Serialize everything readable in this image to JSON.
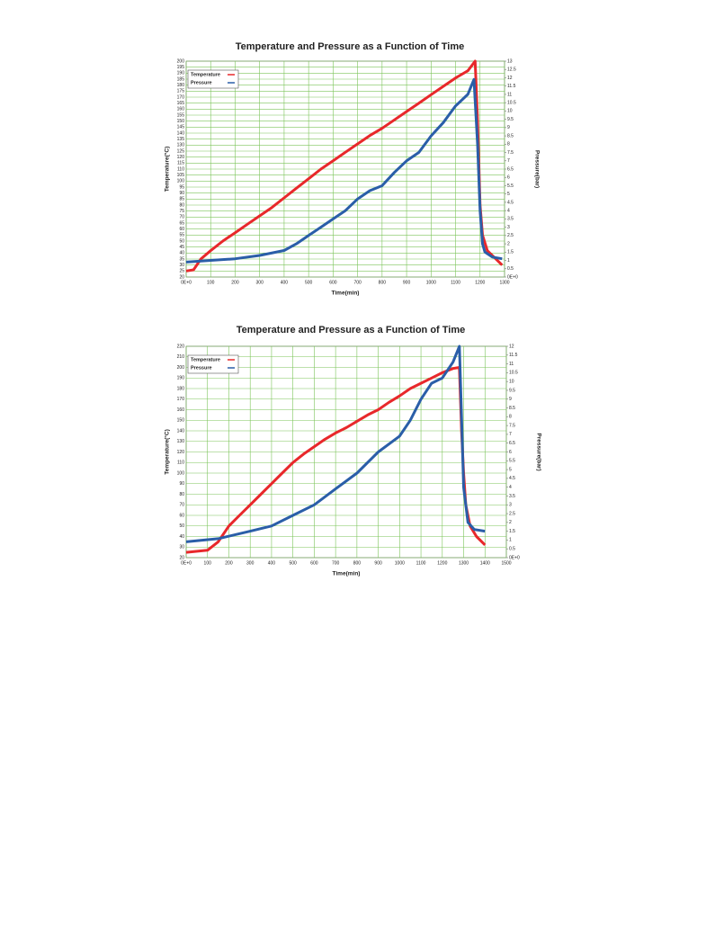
{
  "chart_data": [
    {
      "type": "line",
      "title": "Temperature and Pressure as a Function of Time",
      "xlabel": "Time(min)",
      "ylabel": "Temperature(°C)",
      "y2label": "Pressure(bar)",
      "xlim": [
        0,
        1300
      ],
      "xticks": [
        {
          "value": 0,
          "label": "0E+0"
        },
        100,
        200,
        300,
        400,
        500,
        600,
        700,
        800,
        900,
        1000,
        1100,
        1200,
        1300
      ],
      "ylim": [
        20,
        200
      ],
      "yticks": [
        20,
        25,
        30,
        35,
        40,
        45,
        50,
        55,
        60,
        65,
        70,
        75,
        80,
        85,
        90,
        95,
        100,
        105,
        110,
        115,
        120,
        125,
        130,
        135,
        140,
        145,
        150,
        155,
        160,
        165,
        170,
        175,
        180,
        185,
        190,
        195,
        200
      ],
      "y2lim": [
        0,
        13
      ],
      "y2ticks": [
        {
          "value": 0,
          "label": "0E+0"
        },
        0.5,
        1,
        1.5,
        2,
        2.5,
        3,
        3.5,
        4,
        4.5,
        5,
        5.5,
        6,
        6.5,
        7,
        7.5,
        8,
        8.5,
        9,
        9.5,
        10,
        10.5,
        11,
        11.5,
        12,
        12.5,
        13
      ],
      "grid": true,
      "legend": "upper left",
      "grid_color": "#7cc45a",
      "series": [
        {
          "name": "Temperature",
          "color": "#e8282b",
          "x": [
            0,
            30,
            60,
            100,
            150,
            200,
            250,
            300,
            350,
            400,
            450,
            500,
            550,
            600,
            650,
            700,
            750,
            800,
            850,
            900,
            950,
            1000,
            1050,
            1100,
            1150,
            1180,
            1190,
            1200,
            1210,
            1230,
            1260,
            1290
          ],
          "values": [
            25,
            26,
            35,
            42,
            50,
            57,
            64,
            71,
            78,
            86,
            94,
            102,
            110,
            117,
            124,
            131,
            138,
            144,
            151,
            158,
            165,
            172,
            179,
            186,
            192,
            200,
            150,
            80,
            55,
            42,
            36,
            30
          ]
        },
        {
          "name": "Pressure",
          "color": "#2a5ea8",
          "axis": "y2",
          "x": [
            0,
            100,
            200,
            300,
            400,
            450,
            500,
            550,
            600,
            650,
            700,
            750,
            800,
            850,
            900,
            950,
            1000,
            1050,
            1100,
            1150,
            1175,
            1190,
            1200,
            1210,
            1220,
            1250,
            1290
          ],
          "values": [
            0.9,
            1.0,
            1.1,
            1.3,
            1.6,
            2.0,
            2.5,
            3.0,
            3.5,
            4.0,
            4.7,
            5.2,
            5.5,
            6.3,
            7.0,
            7.5,
            8.5,
            9.3,
            10.3,
            11.0,
            11.9,
            8,
            4,
            2,
            1.5,
            1.2,
            1.1
          ]
        }
      ]
    },
    {
      "type": "line",
      "title": "Temperature and Pressure as a Function of Time",
      "xlabel": "Time(min)",
      "ylabel": "Temperature(°C)",
      "y2label": "Pressure(bar)",
      "xlim": [
        0,
        1500
      ],
      "xticks": [
        {
          "value": 0,
          "label": "0E+0"
        },
        100,
        200,
        300,
        400,
        500,
        600,
        700,
        800,
        900,
        1000,
        1100,
        1200,
        1300,
        1400,
        1500
      ],
      "ylim": [
        20,
        220
      ],
      "yticks": [
        20,
        30,
        40,
        50,
        60,
        70,
        80,
        90,
        100,
        110,
        120,
        130,
        140,
        150,
        160,
        170,
        180,
        190,
        200,
        210,
        220
      ],
      "y2lim": [
        0,
        12
      ],
      "y2ticks": [
        {
          "value": 0,
          "label": "0E+0"
        },
        0.5,
        1,
        1.5,
        2,
        2.5,
        3,
        3.5,
        4,
        4.5,
        5,
        5.5,
        6,
        6.5,
        7,
        7.5,
        8,
        8.5,
        9,
        9.5,
        10,
        10.5,
        11,
        11.5,
        12
      ],
      "grid": true,
      "legend": "upper left",
      "grid_color": "#7cc45a",
      "series": [
        {
          "name": "Temperature",
          "color": "#e8282b",
          "x": [
            0,
            100,
            150,
            200,
            250,
            300,
            350,
            400,
            450,
            500,
            550,
            600,
            650,
            700,
            750,
            800,
            850,
            900,
            950,
            1000,
            1050,
            1100,
            1150,
            1200,
            1250,
            1280,
            1290,
            1300,
            1310,
            1330,
            1360,
            1400
          ],
          "values": [
            25,
            27,
            35,
            50,
            60,
            70,
            80,
            90,
            100,
            110,
            118,
            125,
            132,
            138,
            143,
            149,
            155,
            160,
            167,
            173,
            180,
            185,
            190,
            195,
            199,
            200,
            140,
            100,
            70,
            50,
            40,
            32
          ]
        },
        {
          "name": "Pressure",
          "color": "#2a5ea8",
          "axis": "y2",
          "x": [
            0,
            150,
            300,
            400,
            500,
            600,
            700,
            800,
            900,
            1000,
            1050,
            1100,
            1150,
            1200,
            1250,
            1280,
            1290,
            1300,
            1320,
            1350,
            1400
          ],
          "values": [
            0.9,
            1.08,
            1.5,
            1.8,
            2.4,
            3.0,
            3.9,
            4.8,
            6.0,
            6.9,
            7.8,
            9.0,
            9.9,
            10.2,
            11.1,
            12,
            8,
            4,
            2,
            1.6,
            1.5
          ]
        }
      ]
    }
  ]
}
